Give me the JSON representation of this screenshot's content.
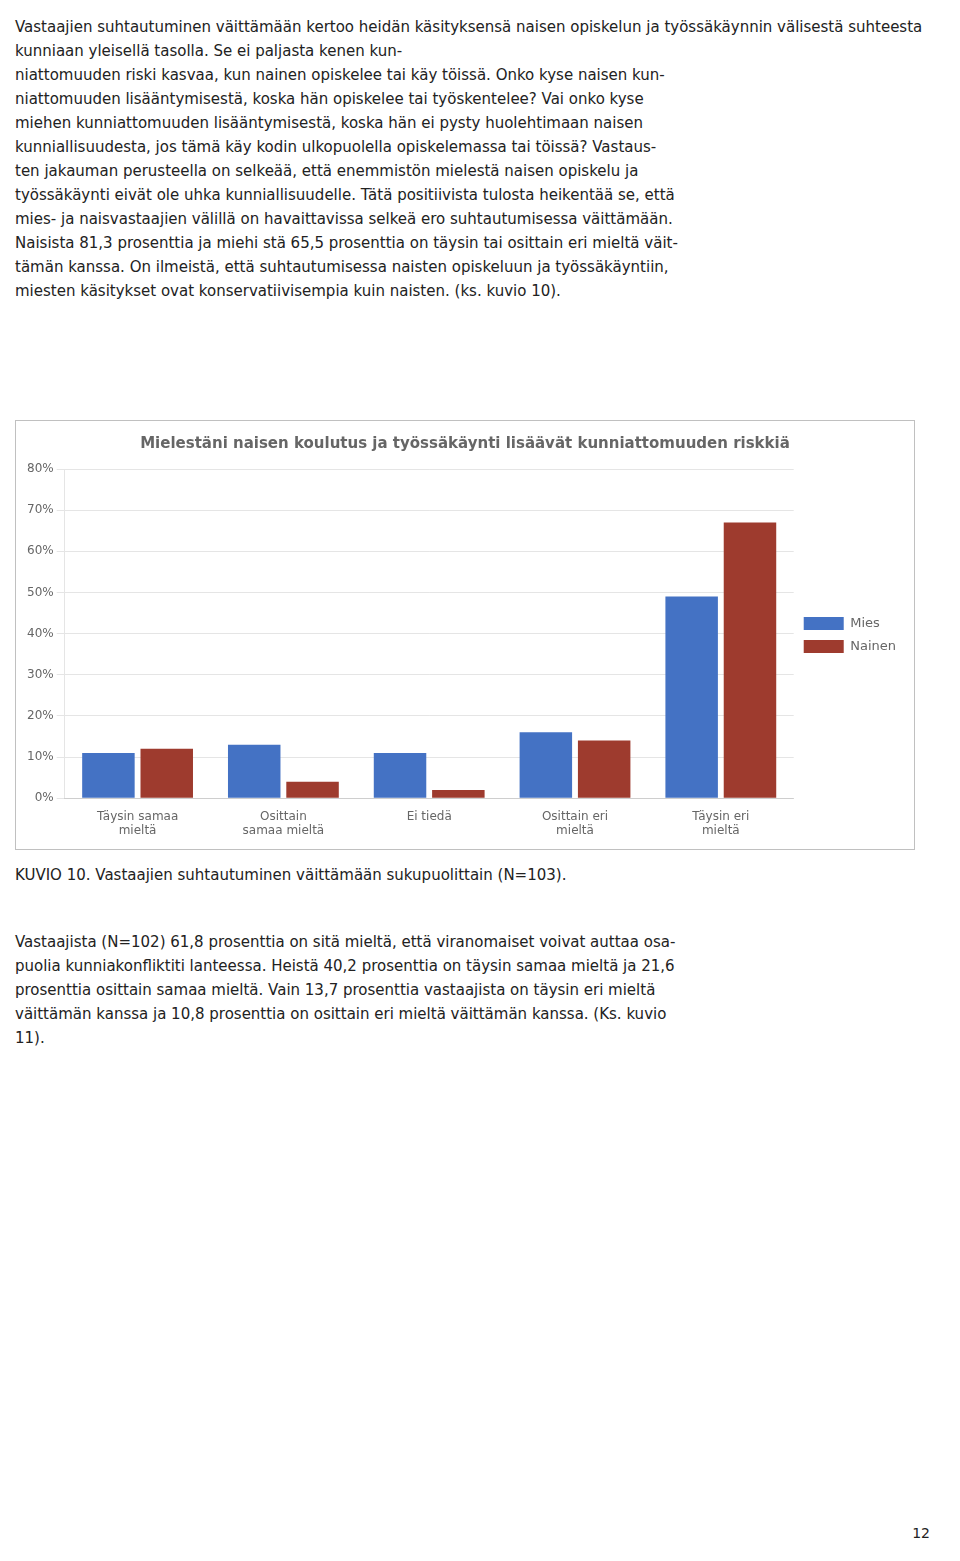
{
  "chart_data": {
    "type": "bar",
    "title": "Mielestäni naisen koulutus ja työssäkäynti lisäävät kunniattomuuden riskkiä",
    "categories": [
      "Täysin samaa\nmieltä",
      "Osittain\nsamaa mieltä",
      "Ei tiedä",
      "Osittain eri\nmieltä",
      "Täysin eri\nmieltä"
    ],
    "series": [
      {
        "name": "Mies",
        "color": "#4472C4",
        "values": [
          11,
          13,
          11,
          16,
          49
        ]
      },
      {
        "name": "Nainen",
        "color": "#9E3B2E",
        "values": [
          12,
          4,
          2,
          14,
          67
        ]
      }
    ],
    "ylim": [
      0,
      80
    ],
    "yticks": [
      {
        "value": 0,
        "label": "0%"
      },
      {
        "value": 10,
        "label": "10%"
      },
      {
        "value": 20,
        "label": "20%"
      },
      {
        "value": 30,
        "label": "30%"
      },
      {
        "value": 40,
        "label": "40%"
      },
      {
        "value": 50,
        "label": "50%"
      },
      {
        "value": 60,
        "label": "60%"
      },
      {
        "value": 70,
        "label": "70%"
      },
      {
        "value": 80,
        "label": "80%"
      }
    ],
    "grid": true,
    "legend": "right",
    "annotations": [
      "Vastaajien suhtautuminen väittämään kertoo heidän käsityksensä naisen opiskelun ja työssäkäynnin välisestä suhteesta kunniaan yleisellä tasolla. Se ei paljasta kenen kun-\nniattomuuden riski kasvaa, kun nainen opiskelee tai käy töissä. Onko kyse naisen kun-\nniattomuuden lisääntymisestä, koska hän opiskelee tai työskentelee? Vai onko kyse\nmiehen kunniattomuuden lisääntymisestä, koska hän ei pysty huolehtimaan naisen\nkunniallisuudesta, jos tämä käy kodin ulkopuolella opiskelemassa tai töissä? Vastaus-\nten jakauman perusteella on selkeää, että enemmistön mielestä naisen opiskelu ja\ntyössäkäynti eivät ole uhka kunniallisuudelle. Tätä positiivista tulosta heikentää se, että\nmies- ja naisvastaajien välillä on havaittavissa selkeä ero suhtautumisessa väittämään.\nNaisista 81,3 prosenttia ja miehi stä 65,5 prosenttia on täysin tai osittain eri mieltä väit-\ntämän kanssa. On ilmeistä, että suhtautumisessa naisten opiskeluun ja työssäkäyntiin,\nmiesten käsitykset ovat konservatiivisempia kuin naisten. (ks. kuvio 10).",
      "KUVIO 10. Vastaajien suhtautuminen väittämään sukupuolittain (N=103).",
      "Vastaajista (N=102) 61,8 prosenttia on sitä mieltä, että viranomaiset voivat auttaa osa-\npuolia kunniakonfliktiti lanteessa. Heistä 40,2 prosenttia on täysin samaa mieltä ja 21,6\nprosenttia osittain samaa mieltä. Vain 13,7 prosenttia vastaajista on täysin eri mieltä\nväittämän kanssa ja 10,8 prosenttia on osittain eri mieltä väittämän kanssa. (Ks. kuvio\n11).",
      "12"
    ]
  }
}
